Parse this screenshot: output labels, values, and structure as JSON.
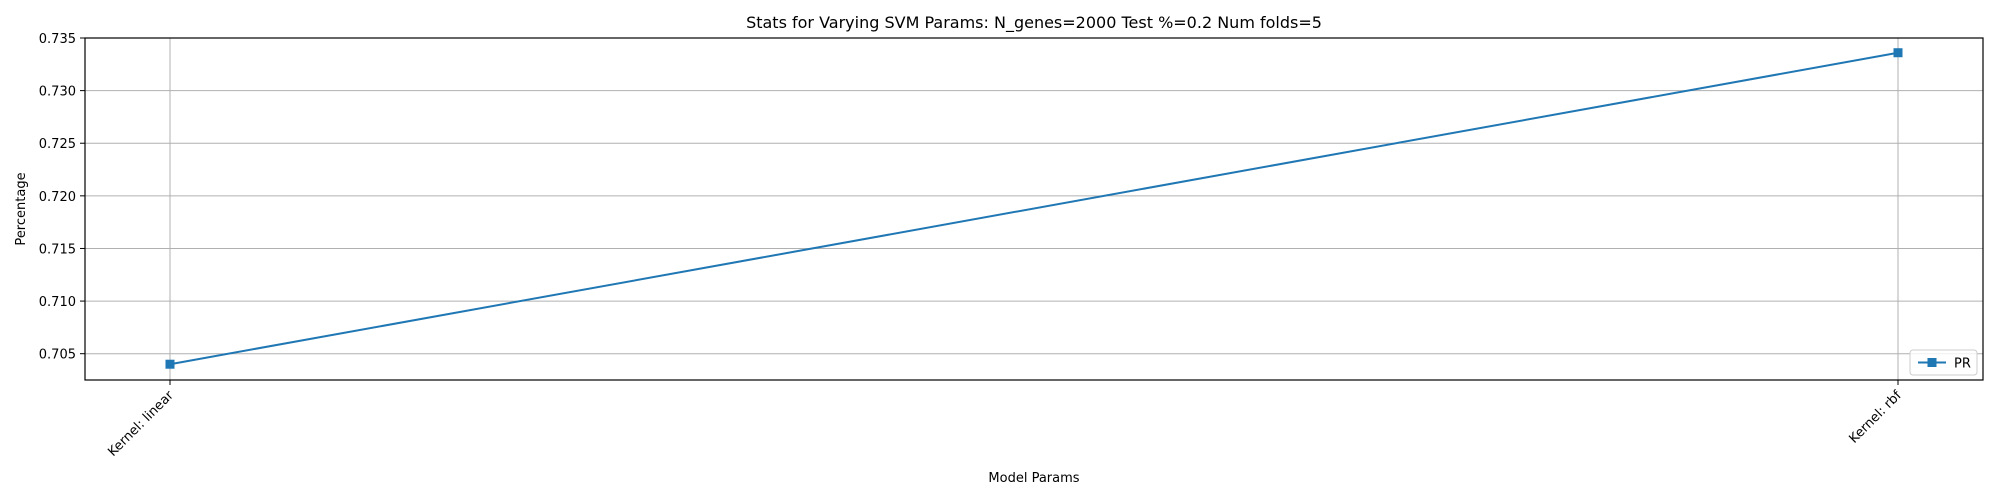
{
  "chart_data": {
    "type": "line",
    "title": "Stats for Varying SVM Params: N_genes=2000 Test %=0.2 Num folds=5",
    "xlabel": "Model Params",
    "ylabel": "Percentage",
    "categories": [
      "Kernel: linear",
      "Kernel: rbf"
    ],
    "series": [
      {
        "name": "PR",
        "values": [
          0.704,
          0.7336
        ],
        "color": "#1f77b4",
        "marker": "square"
      }
    ],
    "ylim": [
      0.7025,
      0.735
    ],
    "yticks": [
      0.705,
      0.71,
      0.715,
      0.72,
      0.725,
      0.73,
      0.735
    ],
    "ytick_labels": [
      "0.705",
      "0.710",
      "0.715",
      "0.720",
      "0.725",
      "0.730",
      "0.735"
    ],
    "grid": true,
    "legend_position": "lower-right"
  }
}
